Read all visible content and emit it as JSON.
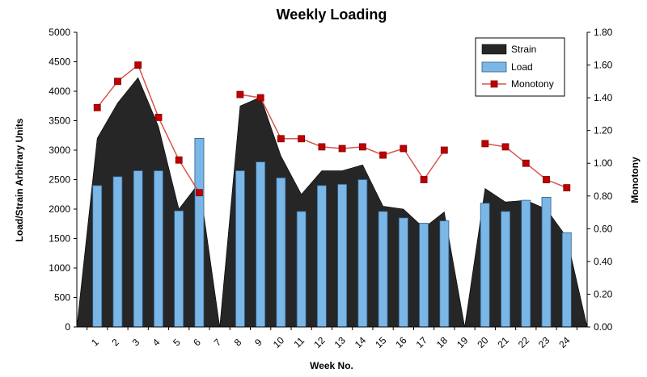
{
  "chart_data": {
    "type": "bar",
    "title": "Weekly Loading",
    "xlabel": "Week No.",
    "ylabel": "Load/Strain Arbitrary Units",
    "y2label": "Monotony",
    "ylim": [
      0,
      5000
    ],
    "y2lim": [
      0,
      1.8
    ],
    "yticks": [
      "0",
      "500",
      "1000",
      "1500",
      "2000",
      "2500",
      "3000",
      "3500",
      "4000",
      "4500",
      "5000"
    ],
    "y2ticks": [
      "0.00",
      "0.20",
      "0.40",
      "0.60",
      "0.80",
      "1.00",
      "1.20",
      "1.40",
      "1.60",
      "1.80"
    ],
    "categories": [
      "1",
      "2",
      "3",
      "4",
      "5",
      "6",
      "7",
      "8",
      "9",
      "10",
      "11",
      "12",
      "13",
      "14",
      "15",
      "16",
      "17",
      "18",
      "19",
      "20",
      "21",
      "22",
      "23",
      "24"
    ],
    "legend_position": "top-right",
    "grid": false,
    "series": [
      {
        "name": "Strain",
        "kind": "area",
        "axis": "left",
        "color": "#262626",
        "start_value": 0,
        "values": [
          3200,
          3800,
          4230,
          3400,
          2000,
          2450,
          0,
          3750,
          3900,
          2900,
          2250,
          2650,
          2650,
          2750,
          2050,
          2000,
          1680,
          1950,
          0,
          2350,
          2120,
          2150,
          2000,
          1520
        ],
        "end_value": 0
      },
      {
        "name": "Load",
        "kind": "bar",
        "axis": "left",
        "color": "#7ab6e6",
        "values": [
          2400,
          2550,
          2650,
          2650,
          1970,
          3200,
          0,
          2650,
          2800,
          2530,
          1960,
          2400,
          2420,
          2500,
          1960,
          1850,
          1760,
          1800,
          0,
          2100,
          1960,
          2150,
          2200,
          1600
        ]
      },
      {
        "name": "Monotony",
        "kind": "line",
        "axis": "right",
        "color": "#d9534f",
        "marker_color": "#c00000",
        "values": [
          1.34,
          1.5,
          1.6,
          1.28,
          1.02,
          0.82,
          null,
          1.42,
          1.4,
          1.15,
          1.15,
          1.1,
          1.09,
          1.1,
          1.05,
          1.09,
          0.9,
          1.08,
          null,
          1.12,
          1.1,
          1.0,
          0.9,
          0.85
        ]
      }
    ]
  }
}
